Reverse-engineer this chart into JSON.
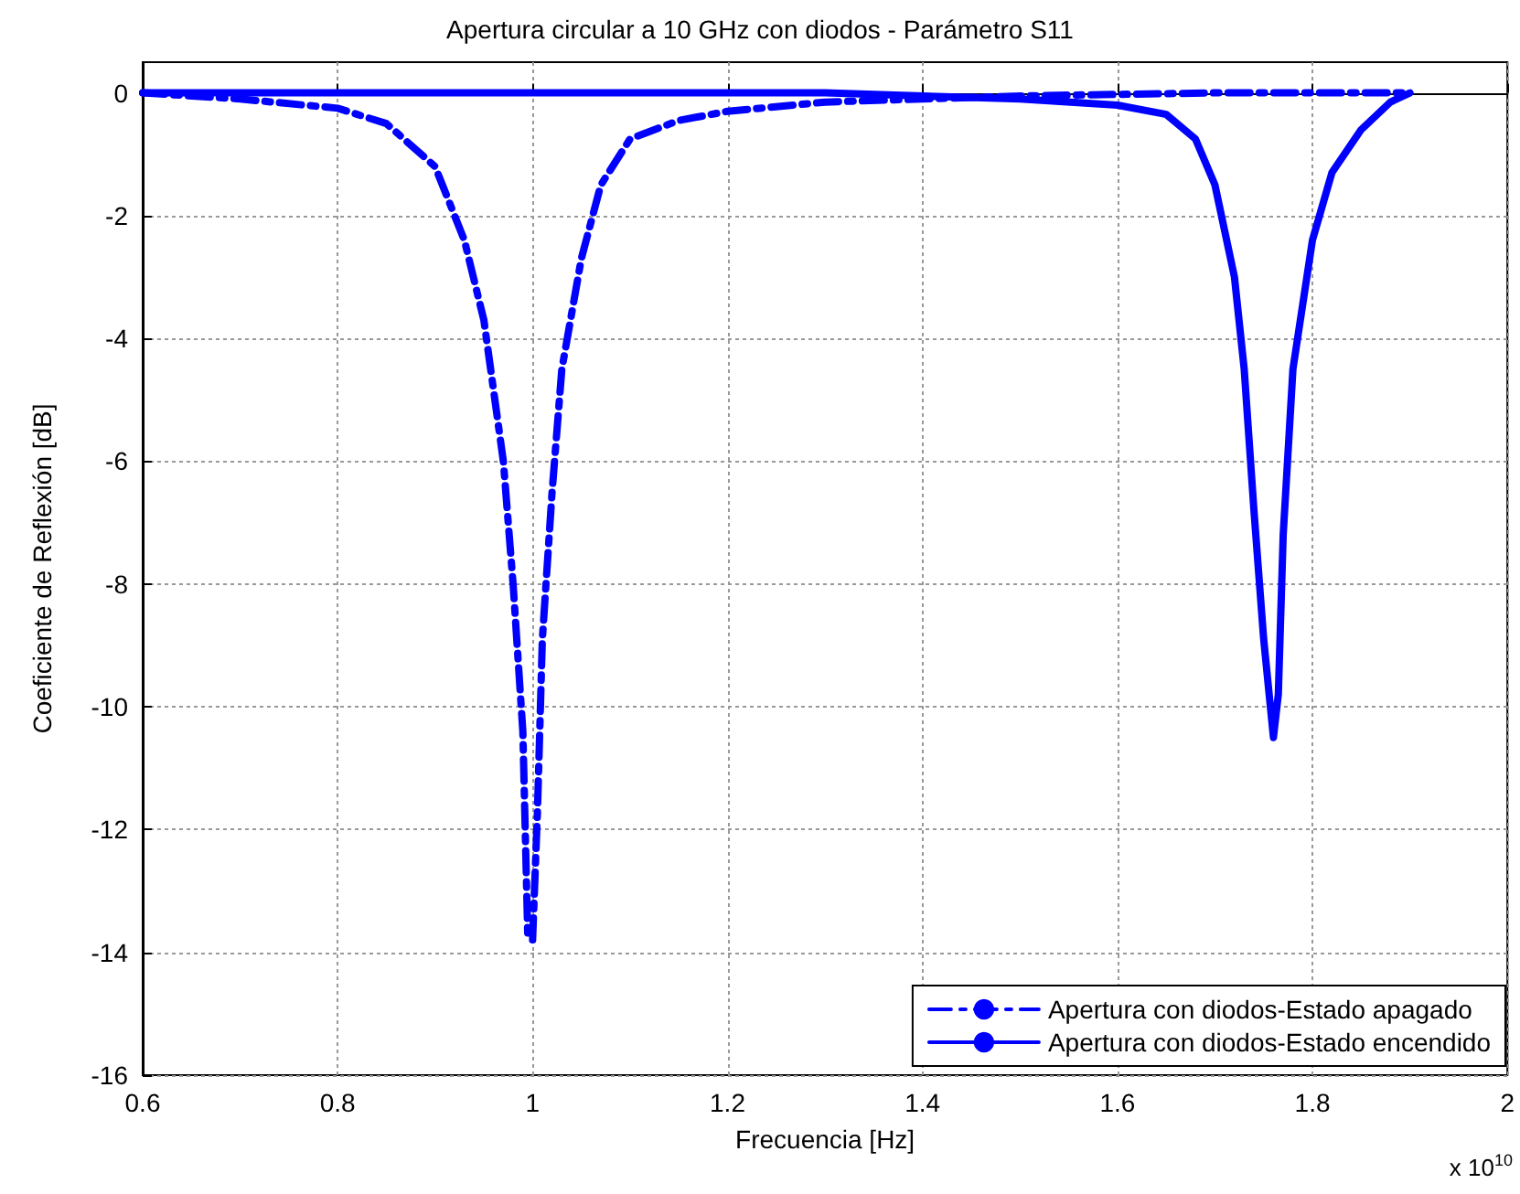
{
  "chart_data": {
    "type": "line",
    "title": "Apertura circular a 10 GHz con diodos - Parámetro S11",
    "xlabel": "Frecuencia [Hz]",
    "ylabel": "Coeficiente de Reflexión [dB]",
    "annotations": [
      "x 10$^{10}$"
    ],
    "xlim": [
      0.6,
      2
    ],
    "xticks": [
      0.6,
      0.8,
      1,
      1.2,
      1.4,
      1.6,
      1.8,
      2
    ],
    "ylim": [
      -16,
      0.5
    ],
    "yticks": [
      -16,
      -14,
      -12,
      -10,
      -8,
      -6,
      -4,
      -2,
      0
    ],
    "grid": true,
    "legend": "bottom right",
    "marker": "none",
    "series": [
      {
        "name": "Apertura con diodos-Estado apagado",
        "color": "#0000ff",
        "line_style": "dashed",
        "x": [
          0.6,
          0.7,
          0.8,
          0.85,
          0.9,
          0.93,
          0.95,
          0.97,
          0.98,
          0.99,
          0.995,
          1.0,
          1.005,
          1.01,
          1.02,
          1.03,
          1.05,
          1.07,
          1.1,
          1.15,
          1.2,
          1.3,
          1.4,
          1.5,
          1.7,
          1.9
        ],
        "values": [
          0,
          -0.1,
          -0.25,
          -0.5,
          -1.2,
          -2.4,
          -3.7,
          -6,
          -8,
          -10.4,
          -13.7,
          -13.8,
          -11.7,
          -8.9,
          -6.5,
          -4.5,
          -2.7,
          -1.5,
          -0.75,
          -0.45,
          -0.3,
          -0.15,
          -0.1,
          -0.05,
          0,
          0
        ]
      },
      {
        "name": "Apertura con diodos-Estado encendido",
        "color": "#0000ff",
        "line_style": "solid",
        "x": [
          0.6,
          1.0,
          1.3,
          1.5,
          1.6,
          1.65,
          1.68,
          1.7,
          1.72,
          1.73,
          1.74,
          1.75,
          1.76,
          1.765,
          1.77,
          1.78,
          1.8,
          1.82,
          1.85,
          1.88,
          1.9
        ],
        "values": [
          0,
          0,
          0,
          -0.1,
          -0.2,
          -0.35,
          -0.75,
          -1.5,
          -3,
          -4.5,
          -6.8,
          -8.9,
          -10.5,
          -9.8,
          -7.2,
          -4.5,
          -2.4,
          -1.3,
          -0.6,
          -0.15,
          0
        ]
      }
    ]
  }
}
